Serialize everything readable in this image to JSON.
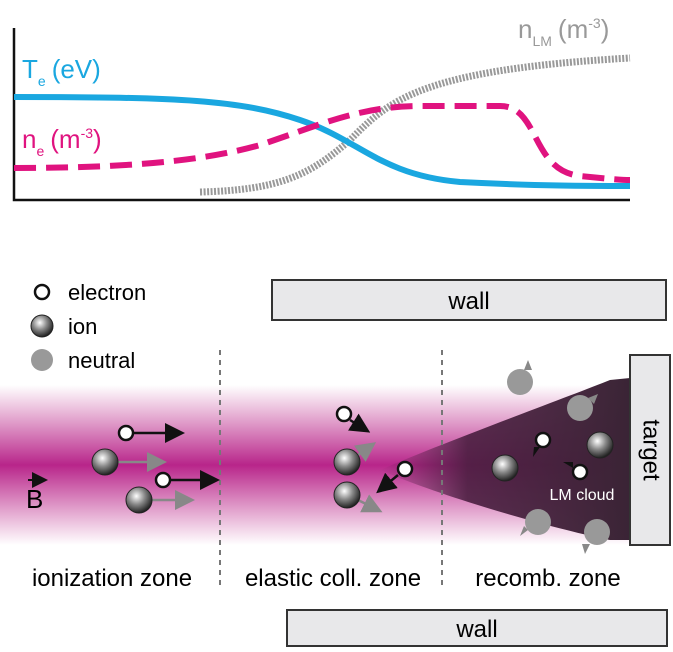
{
  "plot": {
    "curves": [
      {
        "symbol": "T",
        "subscript": "e",
        "unit": "(eV)"
      },
      {
        "symbol": "n",
        "subscript": "e",
        "unit": "(m",
        "superscript": "-3",
        "close": ")"
      },
      {
        "symbol": "n",
        "subscript": "LM",
        "unit": "(m",
        "superscript": "-3",
        "close": ")"
      }
    ]
  },
  "legend": [
    "electron",
    "ion",
    "neutral"
  ],
  "walls": [
    "wall",
    "wall"
  ],
  "target": "target",
  "field": "B",
  "cloud": "LM cloud",
  "zones": [
    "ionization zone",
    "elastic coll. zone",
    "recomb. zone"
  ]
}
